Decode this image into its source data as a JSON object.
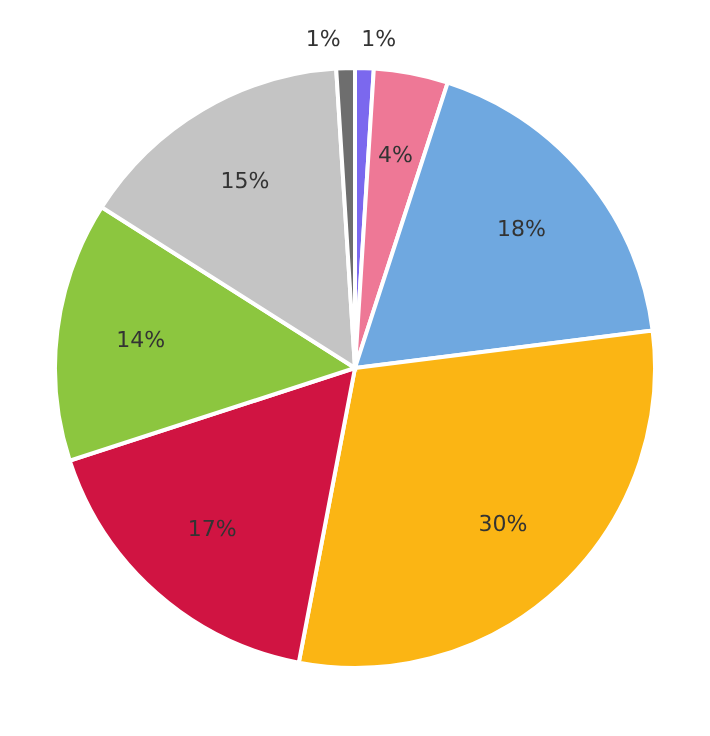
{
  "chart_data": {
    "type": "pie",
    "categories": [
      null,
      null,
      null,
      null,
      null,
      null,
      null,
      null
    ],
    "values": [
      1,
      4,
      18,
      30,
      17,
      14,
      15,
      1
    ],
    "colors": [
      "#7b68ee",
      "#ee7896",
      "#6fa8e0",
      "#fbb514",
      "#d01442",
      "#8cc63f",
      "#c4c4c4",
      "#6e6e6e"
    ],
    "value_labels": [
      "1%",
      "4%",
      "18%",
      "30%",
      "17%",
      "14%",
      "15%",
      "1%"
    ]
  }
}
